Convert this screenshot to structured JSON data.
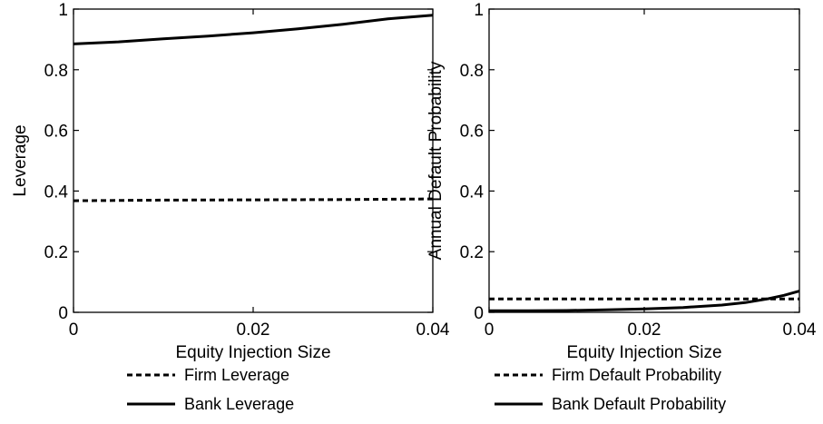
{
  "chart_data": [
    {
      "type": "line",
      "xlabel": "Equity Injection Size",
      "ylabel": "Leverage",
      "xlim": [
        0,
        0.04
      ],
      "ylim": [
        0,
        1
      ],
      "xticks": [
        "0",
        "0.02",
        "0.04"
      ],
      "yticks": [
        "0",
        "0.2",
        "0.4",
        "0.6",
        "0.8",
        "1"
      ],
      "grid": false,
      "legend_placement": "below",
      "series": [
        {
          "name": "Firm Leverage",
          "style": "dashed",
          "color": "#000000",
          "x": [
            0,
            0.01,
            0.02,
            0.03,
            0.04
          ],
          "y": [
            0.368,
            0.37,
            0.371,
            0.372,
            0.374
          ]
        },
        {
          "name": "Bank Leverage",
          "style": "solid",
          "color": "#000000",
          "x": [
            0,
            0.005,
            0.01,
            0.015,
            0.02,
            0.025,
            0.03,
            0.035,
            0.04
          ],
          "y": [
            0.885,
            0.892,
            0.902,
            0.911,
            0.922,
            0.935,
            0.95,
            0.968,
            0.98
          ]
        }
      ]
    },
    {
      "type": "line",
      "xlabel": "Equity Injection Size",
      "ylabel": "Annual Default Probability",
      "xlim": [
        0,
        0.04
      ],
      "ylim": [
        0,
        1
      ],
      "xticks": [
        "0",
        "0.02",
        "0.04"
      ],
      "yticks": [
        "0",
        "0.2",
        "0.4",
        "0.6",
        "0.8",
        "1"
      ],
      "grid": false,
      "legend_placement": "below",
      "series": [
        {
          "name": "Firm Default Probability",
          "style": "dashed",
          "color": "#000000",
          "x": [
            0,
            0.01,
            0.02,
            0.03,
            0.04
          ],
          "y": [
            0.044,
            0.044,
            0.044,
            0.044,
            0.044
          ]
        },
        {
          "name": "Bank Default Probability",
          "style": "solid",
          "color": "#000000",
          "x": [
            0,
            0.005,
            0.01,
            0.015,
            0.02,
            0.025,
            0.03,
            0.033,
            0.036,
            0.038,
            0.04
          ],
          "y": [
            0.005,
            0.005,
            0.006,
            0.008,
            0.011,
            0.016,
            0.024,
            0.032,
            0.045,
            0.056,
            0.07
          ]
        }
      ]
    }
  ]
}
